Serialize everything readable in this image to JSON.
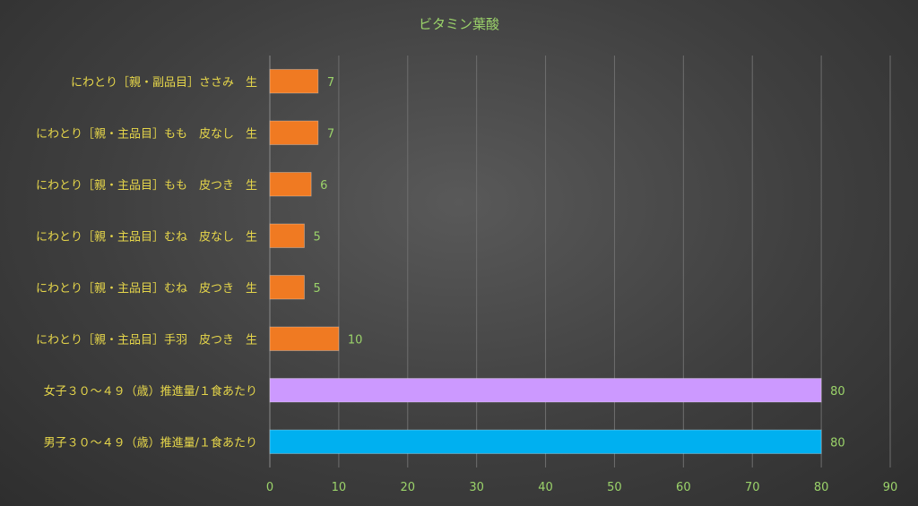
{
  "chart_data": {
    "type": "bar",
    "orientation": "horizontal",
    "title": "ビタミン葉酸",
    "xlabel": "",
    "ylabel": "",
    "xlim": [
      0,
      90
    ],
    "xticks": [
      0,
      10,
      20,
      30,
      40,
      50,
      60,
      70,
      80,
      90
    ],
    "grid": true,
    "legend": "none",
    "categories": [
      "にわとり［親・副品目］ささみ　生",
      "にわとり［親・主品目］もも　皮なし　生",
      "にわとり［親・主品目］もも　皮つき　生",
      "にわとり［親・主品目］むね　皮なし　生",
      "にわとり［親・主品目］むね　皮つき　生",
      "にわとり［親・主品目］手羽　皮つき　生",
      "女子３０～４９（歳）推進量/１食あたり",
      "男子３０～４９（歳）推進量/１食あたり"
    ],
    "values": [
      7,
      7,
      6,
      5,
      5,
      10,
      80,
      80
    ],
    "bar_colors": [
      "#f07a22",
      "#f07a22",
      "#f07a22",
      "#f07a22",
      "#f07a22",
      "#f07a22",
      "#cc99ff",
      "#00b0f0"
    ]
  }
}
